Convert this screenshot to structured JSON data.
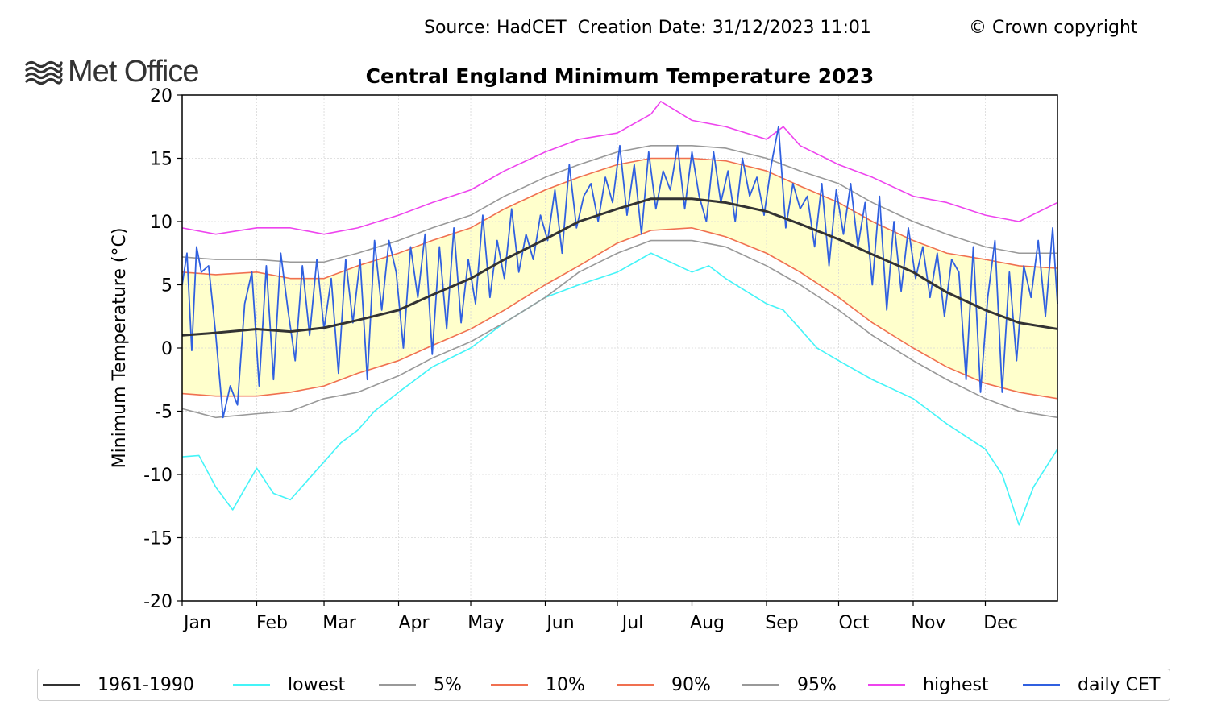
{
  "header": {
    "source_text": "Source: HadCET  Creation Date: 31/12/2023 11:01",
    "copyright": "© Crown copyright",
    "logo_text": "Met Office"
  },
  "chart_data": {
    "type": "line",
    "title": "Central England Minimum Temperature 2023",
    "xlabel": "",
    "ylabel": "Minimum Temperature (°C)",
    "ylim": [
      -20,
      20
    ],
    "xlim": [
      1,
      365
    ],
    "yticks": [
      -20,
      -15,
      -10,
      -5,
      0,
      5,
      10,
      15,
      20
    ],
    "yticklabels": [
      "-20",
      "-15",
      "-10",
      "-5",
      "0",
      "5",
      "10",
      "15",
      "20"
    ],
    "month_labels": [
      "Jan",
      "Feb",
      "Mar",
      "Apr",
      "May",
      "Jun",
      "Jul",
      "Aug",
      "Sep",
      "Oct",
      "Nov",
      "Dec"
    ],
    "month_start_days": [
      1,
      32,
      60,
      91,
      121,
      152,
      182,
      213,
      244,
      274,
      305,
      335
    ],
    "grid": true,
    "shaded_band": {
      "between": [
        "10%",
        "90%"
      ],
      "color": "#ffffcc"
    },
    "legend_position": "bottom",
    "series_style": {
      "1961-1990": {
        "color": "#333333",
        "width": 3
      },
      "lowest": {
        "color": "#44f4f8",
        "width": 1.6
      },
      "5%": {
        "color": "#999999",
        "width": 1.6
      },
      "10%": {
        "color": "#f07050",
        "width": 1.6
      },
      "90%": {
        "color": "#f07050",
        "width": 1.6
      },
      "95%": {
        "color": "#999999",
        "width": 1.6
      },
      "highest": {
        "color": "#ee44ee",
        "width": 1.6
      },
      "daily CET": {
        "color": "#3060e0",
        "width": 1.8
      }
    },
    "series": [
      {
        "name": "1961-1990",
        "color": "#333333",
        "x": [
          1,
          15,
          32,
          46,
          60,
          74,
          91,
          105,
          121,
          135,
          152,
          166,
          182,
          196,
          213,
          227,
          244,
          258,
          274,
          288,
          305,
          319,
          335,
          349,
          365
        ],
        "values": [
          1.0,
          1.2,
          1.5,
          1.3,
          1.6,
          2.2,
          3.0,
          4.2,
          5.5,
          7.0,
          8.6,
          10.0,
          11.0,
          11.8,
          11.8,
          11.5,
          10.8,
          9.8,
          8.6,
          7.4,
          6.0,
          4.4,
          3.0,
          2.0,
          1.5
        ]
      },
      {
        "name": "lowest",
        "color": "#44f4f8",
        "x": [
          1,
          8,
          15,
          22,
          32,
          39,
          46,
          53,
          60,
          67,
          74,
          81,
          91,
          105,
          121,
          135,
          152,
          166,
          182,
          196,
          213,
          220,
          227,
          244,
          251,
          258,
          265,
          274,
          288,
          305,
          319,
          335,
          342,
          349,
          355,
          365
        ],
        "values": [
          -8.6,
          -8.5,
          -11.0,
          -12.8,
          -9.5,
          -11.5,
          -12.0,
          -10.5,
          -9.0,
          -7.5,
          -6.5,
          -5.0,
          -3.5,
          -1.5,
          0.0,
          2.0,
          4.0,
          5.0,
          6.0,
          7.5,
          6.0,
          6.5,
          5.5,
          3.5,
          3.0,
          1.5,
          0.0,
          -1.0,
          -2.5,
          -4.0,
          -6.0,
          -8.0,
          -10.0,
          -14.0,
          -11.0,
          -8.0
        ]
      },
      {
        "name": "5%",
        "color": "#999999",
        "x": [
          1,
          15,
          32,
          46,
          60,
          74,
          91,
          105,
          121,
          135,
          152,
          166,
          182,
          196,
          213,
          227,
          244,
          258,
          274,
          288,
          305,
          319,
          335,
          349,
          365
        ],
        "values": [
          -4.8,
          -5.5,
          -5.2,
          -5.0,
          -4.0,
          -3.5,
          -2.2,
          -0.8,
          0.5,
          2.0,
          4.0,
          6.0,
          7.5,
          8.5,
          8.5,
          8.0,
          6.5,
          5.0,
          3.0,
          1.0,
          -1.0,
          -2.5,
          -4.0,
          -5.0,
          -5.5
        ]
      },
      {
        "name": "10%",
        "color": "#f07050",
        "x": [
          1,
          15,
          32,
          46,
          60,
          74,
          91,
          105,
          121,
          135,
          152,
          166,
          182,
          196,
          213,
          227,
          244,
          258,
          274,
          288,
          305,
          319,
          335,
          349,
          365
        ],
        "values": [
          -3.6,
          -3.8,
          -3.8,
          -3.5,
          -3.0,
          -2.0,
          -1.0,
          0.2,
          1.5,
          3.0,
          5.0,
          6.5,
          8.3,
          9.3,
          9.5,
          8.8,
          7.5,
          6.0,
          4.0,
          2.0,
          0.0,
          -1.5,
          -2.8,
          -3.5,
          -4.0
        ]
      },
      {
        "name": "90%",
        "color": "#f07050",
        "x": [
          1,
          15,
          32,
          46,
          60,
          74,
          91,
          105,
          121,
          135,
          152,
          166,
          182,
          196,
          213,
          227,
          244,
          258,
          274,
          288,
          305,
          319,
          335,
          349,
          365
        ],
        "values": [
          6.0,
          5.8,
          6.0,
          5.5,
          5.5,
          6.5,
          7.5,
          8.5,
          9.5,
          11.0,
          12.5,
          13.5,
          14.5,
          15.0,
          15.0,
          14.8,
          14.0,
          12.8,
          11.5,
          10.0,
          8.5,
          7.5,
          7.0,
          6.5,
          6.3
        ]
      },
      {
        "name": "95%",
        "color": "#999999",
        "x": [
          1,
          15,
          32,
          46,
          60,
          74,
          91,
          105,
          121,
          135,
          152,
          166,
          182,
          196,
          213,
          227,
          244,
          258,
          274,
          288,
          305,
          319,
          335,
          349,
          365
        ],
        "values": [
          7.2,
          7.0,
          7.0,
          6.8,
          6.8,
          7.5,
          8.5,
          9.5,
          10.5,
          12.0,
          13.5,
          14.5,
          15.5,
          16.0,
          16.0,
          15.8,
          15.0,
          14.0,
          13.0,
          11.5,
          10.0,
          9.0,
          8.0,
          7.5,
          7.5
        ]
      },
      {
        "name": "highest",
        "color": "#ee44ee",
        "x": [
          1,
          15,
          32,
          46,
          60,
          74,
          91,
          105,
          121,
          135,
          152,
          166,
          182,
          196,
          200,
          213,
          227,
          244,
          251,
          258,
          274,
          288,
          305,
          319,
          335,
          349,
          365
        ],
        "values": [
          9.5,
          9.0,
          9.5,
          9.5,
          9.0,
          9.5,
          10.5,
          11.5,
          12.5,
          14.0,
          15.5,
          16.5,
          17.0,
          18.5,
          19.5,
          18.0,
          17.5,
          16.5,
          17.5,
          16.0,
          14.5,
          13.5,
          12.0,
          11.5,
          10.5,
          10.0,
          11.5
        ]
      },
      {
        "name": "daily CET",
        "color": "#3060e0",
        "x": [
          1,
          3,
          5,
          7,
          9,
          12,
          15,
          18,
          21,
          24,
          27,
          30,
          33,
          36,
          39,
          42,
          45,
          48,
          51,
          54,
          57,
          60,
          63,
          66,
          69,
          72,
          75,
          78,
          81,
          84,
          87,
          90,
          93,
          96,
          99,
          102,
          105,
          108,
          111,
          114,
          117,
          120,
          123,
          126,
          129,
          132,
          135,
          138,
          141,
          144,
          147,
          150,
          153,
          156,
          159,
          162,
          165,
          168,
          171,
          174,
          177,
          180,
          183,
          186,
          189,
          192,
          195,
          198,
          201,
          204,
          207,
          210,
          213,
          216,
          219,
          222,
          225,
          228,
          231,
          234,
          237,
          240,
          243,
          246,
          249,
          252,
          255,
          258,
          261,
          264,
          267,
          270,
          273,
          276,
          279,
          282,
          285,
          288,
          291,
          294,
          297,
          300,
          303,
          306,
          309,
          312,
          315,
          318,
          321,
          324,
          327,
          330,
          333,
          336,
          339,
          342,
          345,
          348,
          351,
          354,
          357,
          360,
          363,
          365
        ],
        "values": [
          5.0,
          7.5,
          -0.2,
          8.0,
          6.0,
          6.5,
          1.0,
          -5.5,
          -3.0,
          -4.5,
          3.5,
          6.0,
          -3.0,
          6.5,
          -2.5,
          7.5,
          3.0,
          -1.0,
          6.5,
          1.0,
          7.0,
          1.5,
          5.5,
          -2.0,
          7.0,
          2.0,
          7.0,
          -2.5,
          8.5,
          3.0,
          8.5,
          6.0,
          0.0,
          8.0,
          4.0,
          9.0,
          -0.5,
          8.0,
          1.5,
          9.5,
          2.0,
          7.0,
          3.5,
          10.5,
          4.0,
          8.5,
          5.5,
          11.0,
          6.0,
          9.0,
          7.0,
          10.5,
          8.5,
          12.5,
          7.5,
          14.5,
          9.5,
          12.0,
          13.0,
          10.0,
          13.5,
          11.5,
          16.0,
          10.5,
          14.5,
          9.0,
          15.5,
          11.0,
          14.0,
          12.5,
          16.0,
          11.0,
          15.5,
          12.0,
          10.0,
          15.5,
          11.5,
          14.0,
          10.0,
          15.0,
          12.0,
          13.5,
          10.5,
          14.5,
          17.5,
          9.5,
          13.0,
          11.0,
          12.0,
          8.0,
          13.0,
          6.5,
          12.5,
          9.0,
          13.0,
          8.0,
          11.5,
          5.0,
          12.0,
          3.0,
          10.0,
          4.5,
          9.5,
          5.5,
          8.0,
          4.0,
          7.5,
          2.5,
          7.0,
          6.0,
          -2.5,
          8.0,
          -3.5,
          4.0,
          8.5,
          -3.5,
          6.0,
          -1.0,
          6.5,
          4.0,
          8.5,
          2.5,
          9.5,
          3.5
        ]
      }
    ]
  }
}
